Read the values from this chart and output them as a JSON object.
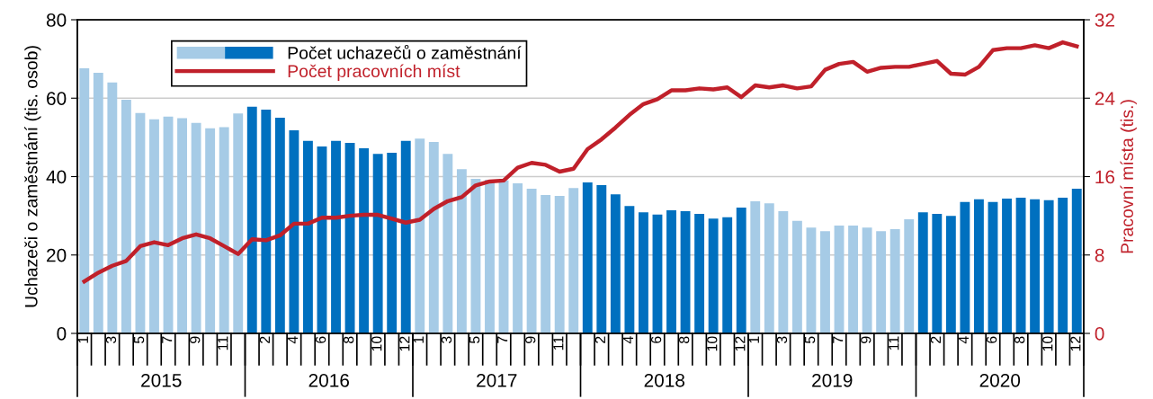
{
  "chart_data": {
    "type": "bar",
    "xlabel": null,
    "ylabel": "Uchazeči o zaměstnání (tis. osob)",
    "y2label": "Pracovní místa (tis.)",
    "categories": [
      "1",
      null,
      "3",
      null,
      "5",
      null,
      "7",
      null,
      "9",
      null,
      "11",
      null,
      null,
      "2",
      null,
      "4",
      null,
      "6",
      null,
      "8",
      null,
      "10",
      null,
      "12",
      "1",
      null,
      "3",
      null,
      "5",
      null,
      "7",
      null,
      "9",
      null,
      "11",
      null,
      null,
      "2",
      null,
      "4",
      null,
      "6",
      null,
      "8",
      null,
      "10",
      null,
      "12",
      "1",
      null,
      "3",
      null,
      "5",
      null,
      "7",
      null,
      "9",
      null,
      "11",
      null,
      null,
      "2",
      null,
      "4",
      null,
      "6",
      null,
      "8",
      null,
      "10",
      null,
      "12"
    ],
    "series": [
      {
        "name": "Počet uchazečů o zaměstnání",
        "axis": "y",
        "colors": [
          "#a6cbe6",
          "#a6cbe6",
          "#a6cbe6",
          "#a6cbe6",
          "#a6cbe6",
          "#a6cbe6",
          "#a6cbe6",
          "#a6cbe6",
          "#a6cbe6",
          "#a6cbe6",
          "#a6cbe6",
          "#a6cbe6",
          "#0070bf",
          "#0070bf",
          "#0070bf",
          "#0070bf",
          "#0070bf",
          "#0070bf",
          "#0070bf",
          "#0070bf",
          "#0070bf",
          "#0070bf",
          "#0070bf",
          "#0070bf",
          "#a6cbe6",
          "#a6cbe6",
          "#a6cbe6",
          "#a6cbe6",
          "#a6cbe6",
          "#a6cbe6",
          "#a6cbe6",
          "#a6cbe6",
          "#a6cbe6",
          "#a6cbe6",
          "#a6cbe6",
          "#a6cbe6",
          "#0070bf",
          "#0070bf",
          "#0070bf",
          "#0070bf",
          "#0070bf",
          "#0070bf",
          "#0070bf",
          "#0070bf",
          "#0070bf",
          "#0070bf",
          "#0070bf",
          "#0070bf",
          "#a6cbe6",
          "#a6cbe6",
          "#a6cbe6",
          "#a6cbe6",
          "#a6cbe6",
          "#a6cbe6",
          "#a6cbe6",
          "#a6cbe6",
          "#a6cbe6",
          "#a6cbe6",
          "#a6cbe6",
          "#a6cbe6",
          "#0070bf",
          "#0070bf",
          "#0070bf",
          "#0070bf",
          "#0070bf",
          "#0070bf",
          "#0070bf",
          "#0070bf",
          "#0070bf",
          "#0070bf",
          "#0070bf",
          "#0070bf"
        ],
        "values": [
          67.6,
          66.5,
          64.0,
          59.6,
          56.2,
          54.6,
          55.3,
          54.9,
          53.7,
          52.3,
          52.6,
          56.1,
          57.8,
          57.1,
          55.0,
          51.8,
          49.1,
          47.7,
          49.1,
          48.6,
          47.2,
          45.8,
          46.1,
          49.1,
          49.7,
          48.8,
          45.8,
          41.9,
          39.4,
          39.2,
          39.0,
          38.3,
          36.9,
          35.3,
          35.1,
          37.1,
          38.5,
          37.8,
          35.5,
          32.5,
          30.9,
          30.3,
          31.4,
          31.2,
          30.5,
          29.3,
          29.6,
          32.1,
          33.7,
          33.2,
          31.2,
          28.7,
          27.0,
          26.1,
          27.5,
          27.5,
          27.0,
          26.1,
          26.6,
          29.1,
          30.9,
          30.5,
          30.0,
          33.5,
          34.2,
          33.5,
          34.4,
          34.6,
          34.2,
          34.0,
          34.6,
          36.9
        ]
      },
      {
        "name": "Počet pracovních míst",
        "type": "line",
        "axis": "y2",
        "color": "#c0202a",
        "values": [
          5.3,
          6.2,
          6.9,
          7.4,
          8.9,
          9.3,
          9.0,
          9.7,
          10.1,
          9.7,
          8.9,
          8.1,
          9.6,
          9.5,
          10.0,
          11.2,
          11.2,
          11.8,
          11.8,
          12.0,
          12.1,
          12.1,
          11.7,
          11.3,
          11.6,
          12.7,
          13.5,
          13.9,
          15.1,
          15.5,
          15.6,
          16.9,
          17.4,
          17.2,
          16.5,
          16.8,
          18.8,
          19.8,
          21.0,
          22.3,
          23.4,
          23.9,
          24.8,
          24.8,
          25.0,
          24.9,
          25.1,
          24.1,
          25.3,
          25.1,
          25.3,
          25.0,
          25.2,
          26.9,
          27.5,
          27.7,
          26.7,
          27.1,
          27.2,
          27.2,
          27.5,
          27.8,
          26.5,
          26.4,
          27.2,
          28.9,
          29.1,
          29.1,
          29.4,
          29.1,
          29.7,
          29.3
        ]
      }
    ],
    "ylim": [
      0,
      80
    ],
    "yticks": [
      0,
      20,
      40,
      60,
      80
    ],
    "y2lim": [
      0,
      32
    ],
    "y2ticks": [
      0,
      8,
      16,
      24,
      32
    ],
    "grid": "y",
    "legend": "top left",
    "marker": "none",
    "line_style": "solid",
    "annotations": [
      "2015",
      "2016",
      "2017",
      "2018",
      "2019",
      "2020"
    ]
  }
}
